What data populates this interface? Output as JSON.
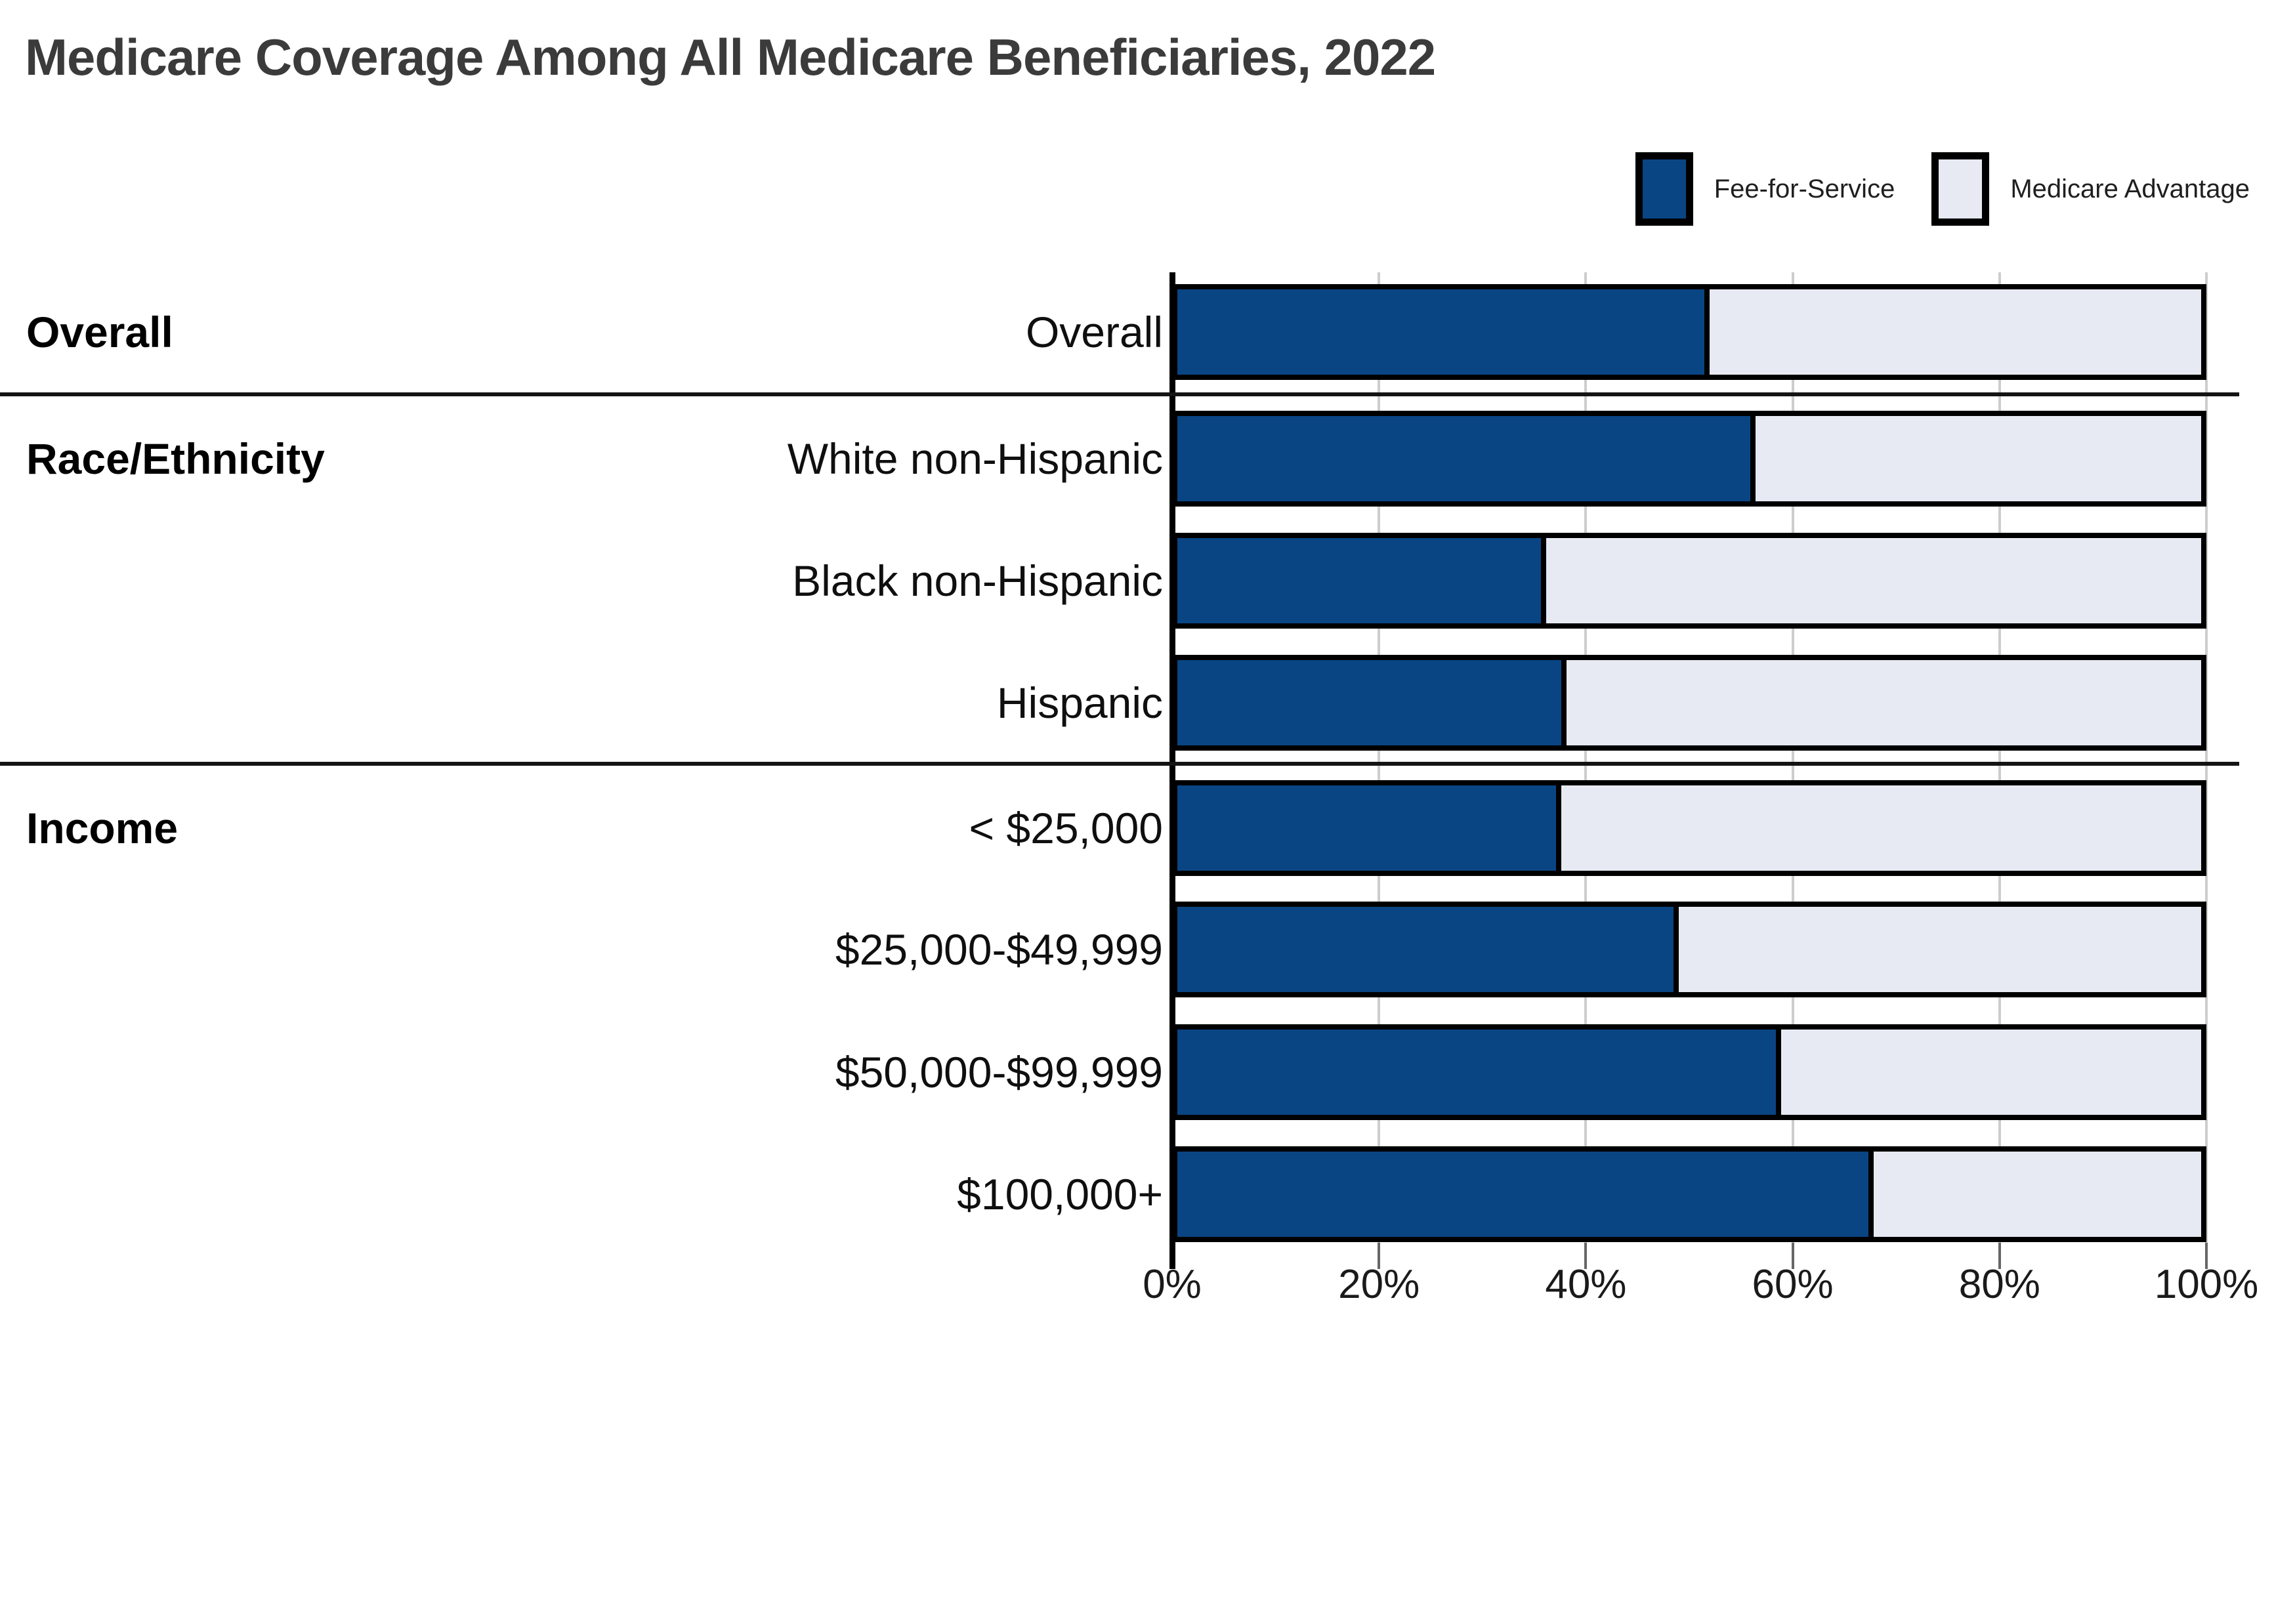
{
  "title": "Medicare Coverage Among All Medicare Beneficiaries, 2022",
  "legend": {
    "items": [
      {
        "label": "Fee-for-Service",
        "color": "#0a4583"
      },
      {
        "label": "Medicare Advantage",
        "color": "#e7eaf3"
      }
    ]
  },
  "colors": {
    "ffs": "#0a4583",
    "ma": "#e7eaf3",
    "bar_border": "#000000",
    "gridline": "#cdcdcd",
    "axis": "#000000",
    "tick": "#666666",
    "separator": "#141414",
    "title_text": "#3b3b3b",
    "label_text": "#0f0f0f"
  },
  "chart_data": {
    "type": "bar",
    "orientation": "horizontal",
    "stacked": true,
    "title": "Medicare Coverage Among All Medicare Beneficiaries, 2022",
    "xlabel": "",
    "ylabel": "",
    "unit": "percent",
    "xlim": [
      0,
      100
    ],
    "grid": true,
    "legend_position": "top-right",
    "x_ticks": [
      {
        "pct": 0,
        "label": "0%"
      },
      {
        "pct": 20,
        "label": "20%"
      },
      {
        "pct": 40,
        "label": "40%"
      },
      {
        "pct": 60,
        "label": "60%"
      },
      {
        "pct": 80,
        "label": "80%"
      },
      {
        "pct": 100,
        "label": "100%"
      }
    ],
    "series_names": [
      "Fee-for-Service",
      "Medicare Advantage"
    ],
    "groups": [
      {
        "label": "Overall",
        "rows": [
          {
            "label": "Overall",
            "ffs": 52,
            "ma": 48
          }
        ]
      },
      {
        "label": "Race/Ethnicity",
        "rows": [
          {
            "label": "White non-Hispanic",
            "ffs": 56.5,
            "ma": 43.5
          },
          {
            "label": "Black non-Hispanic",
            "ffs": 36,
            "ma": 64
          },
          {
            "label": "Hispanic",
            "ffs": 38,
            "ma": 62
          }
        ]
      },
      {
        "label": "Income",
        "rows": [
          {
            "label": "< $25,000",
            "ffs": 37.5,
            "ma": 62.5
          },
          {
            "label": "$25,000-$49,999",
            "ffs": 49,
            "ma": 51
          },
          {
            "label": "$50,000-$99,999",
            "ffs": 59,
            "ma": 41
          },
          {
            "label": "$100,000+",
            "ffs": 68,
            "ma": 32
          }
        ]
      }
    ]
  }
}
